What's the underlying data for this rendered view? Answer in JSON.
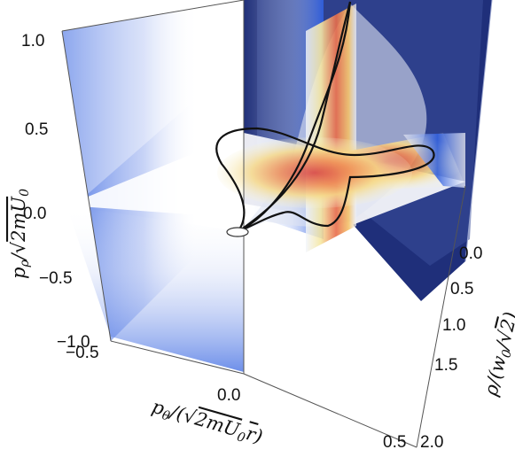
{
  "chart_data": {
    "type": "surface3d",
    "title": "",
    "axes": {
      "x": {
        "label": "pθ/(√2mU0r)",
        "label_parts": [
          "p",
          "θ",
          "/(",
          "√",
          "2mU",
          "0",
          "r",
          ")"
        ],
        "ticks": [
          "−0.5",
          "0.0",
          "0.5"
        ],
        "range": [
          -0.5,
          0.5
        ]
      },
      "y": {
        "label": "ρ/(w0/√2)",
        "label_parts": [
          "ρ/(w",
          "0",
          "/",
          "√",
          "2",
          ")"
        ],
        "ticks": [
          "0.0",
          "0.5",
          "1.0",
          "1.5",
          "2.0"
        ],
        "range": [
          0,
          2
        ]
      },
      "z": {
        "label": "pρ/√2mU0",
        "label_parts": [
          "p",
          "ρ",
          "/",
          "√",
          "2mU",
          "0"
        ],
        "ticks": [
          "−1.0",
          "0.0",
          "0.5",
          "1.0"
        ],
        "range": [
          -1,
          1
        ]
      }
    },
    "box": true,
    "grid": false,
    "legend": "none",
    "colors": {
      "wall_projection": "#2f5fe0",
      "box_shade": "#1f2f7a",
      "density_high": "#d63b3b",
      "density_mid": "#f2a94a",
      "density_low": "#f7f0b0",
      "curve": "#111111"
    }
  }
}
